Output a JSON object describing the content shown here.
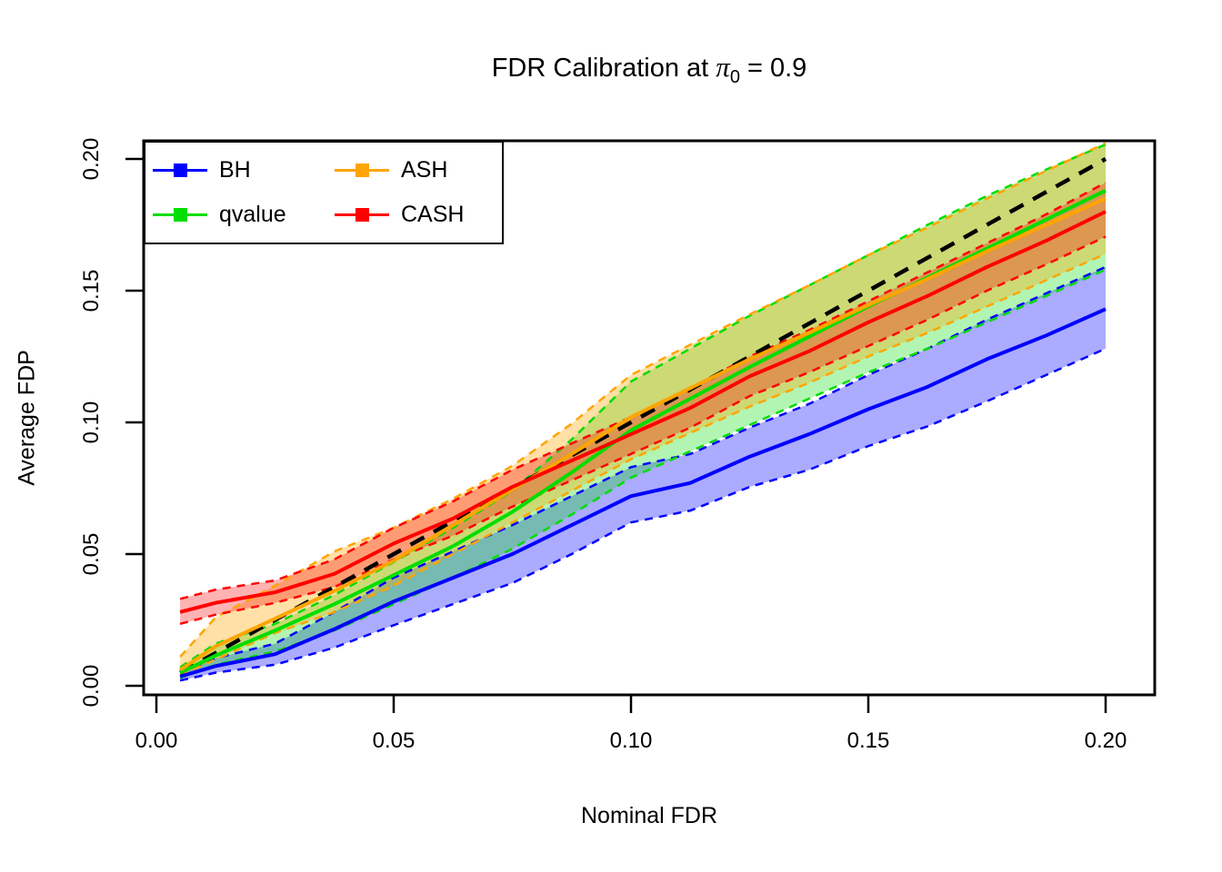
{
  "title": {
    "prefix": "FDR Calibration at ",
    "pi": "π",
    "sub": "0",
    "suffix": " = 0.9"
  },
  "chart_data": {
    "type": "line",
    "title": "FDR Calibration at pi0 = 0.9",
    "xlabel": "Nominal FDR",
    "ylabel": "Average FDP",
    "xlim": [
      0,
      0.21
    ],
    "ylim": [
      0,
      0.207
    ],
    "grid": "off",
    "x_ticks": {
      "values": [
        0,
        0.05,
        0.1,
        0.15,
        0.2
      ],
      "labels": [
        "0.00",
        "0.05",
        "0.10",
        "0.15",
        "0.20"
      ]
    },
    "y_ticks": {
      "values": [
        0,
        0.05,
        0.1,
        0.15,
        0.2
      ],
      "labels": [
        "0.00",
        "0.05",
        "0.10",
        "0.15",
        "0.20"
      ]
    },
    "legend": {
      "position": "top-left",
      "entries": [
        "BH",
        "qvalue",
        "ASH",
        "CASH"
      ]
    },
    "reference_line": {
      "meaning": "y = x (perfect calibration)",
      "color": "#000000",
      "style": "dashed",
      "x": [
        0.005,
        0.2
      ],
      "y": [
        0.005,
        0.2
      ]
    },
    "x": [
      0.005,
      0.0125,
      0.025,
      0.0375,
      0.05,
      0.0625,
      0.075,
      0.0875,
      0.1,
      0.1125,
      0.125,
      0.1375,
      0.15,
      0.1625,
      0.175,
      0.1875,
      0.2
    ],
    "series": [
      {
        "name": "BH",
        "color": "#0000FF",
        "band_alpha": 0.33,
        "mean": [
          0.0035,
          0.0075,
          0.012,
          0.0215,
          0.032,
          0.041,
          0.05,
          0.061,
          0.072,
          0.077,
          0.087,
          0.0955,
          0.105,
          0.1135,
          0.124,
          0.133,
          0.143
        ],
        "lo": [
          0.002,
          0.005,
          0.008,
          0.0145,
          0.023,
          0.031,
          0.039,
          0.05,
          0.062,
          0.0665,
          0.0755,
          0.082,
          0.091,
          0.0985,
          0.108,
          0.118,
          0.128
        ],
        "hi": [
          0.005,
          0.0105,
          0.016,
          0.028,
          0.041,
          0.051,
          0.061,
          0.072,
          0.083,
          0.088,
          0.098,
          0.107,
          0.118,
          0.128,
          0.139,
          0.149,
          0.159
        ]
      },
      {
        "name": "qvalue",
        "color": "#00DD00",
        "band_alpha": 0.3,
        "mean": [
          0.005,
          0.0115,
          0.021,
          0.031,
          0.042,
          0.053,
          0.066,
          0.081,
          0.097,
          0.109,
          0.121,
          0.1325,
          0.144,
          0.155,
          0.166,
          0.177,
          0.188
        ],
        "lo": [
          0.003,
          0.008,
          0.013,
          0.021,
          0.031,
          0.041,
          0.052,
          0.065,
          0.079,
          0.089,
          0.099,
          0.109,
          0.119,
          0.128,
          0.138,
          0.148,
          0.158
        ],
        "hi": [
          0.007,
          0.016,
          0.0235,
          0.0345,
          0.047,
          0.06,
          0.074,
          0.0935,
          0.1155,
          0.128,
          0.1405,
          0.152,
          0.1635,
          0.175,
          0.186,
          0.196,
          0.2055
        ]
      },
      {
        "name": "ASH",
        "color": "#FFA500",
        "band_alpha": 0.35,
        "mean": [
          0.006,
          0.015,
          0.0255,
          0.036,
          0.0475,
          0.061,
          0.0745,
          0.088,
          0.102,
          0.113,
          0.124,
          0.134,
          0.1445,
          0.1545,
          0.165,
          0.175,
          0.185
        ],
        "lo": [
          0.004,
          0.01,
          0.02,
          0.028,
          0.038,
          0.05,
          0.062,
          0.074,
          0.086,
          0.096,
          0.106,
          0.115,
          0.125,
          0.134,
          0.144,
          0.154,
          0.164
        ],
        "hi": [
          0.011,
          0.026,
          0.038,
          0.051,
          0.06,
          0.071,
          0.0835,
          0.0995,
          0.118,
          0.1295,
          0.141,
          0.152,
          0.1635,
          0.174,
          0.185,
          0.1955,
          0.206
        ]
      },
      {
        "name": "CASH",
        "color": "#FF0000",
        "band_alpha": 0.3,
        "mean": [
          0.028,
          0.0315,
          0.0355,
          0.0425,
          0.054,
          0.0635,
          0.0755,
          0.0855,
          0.0955,
          0.1055,
          0.1175,
          0.127,
          0.138,
          0.148,
          0.159,
          0.169,
          0.18
        ],
        "lo": [
          0.0235,
          0.027,
          0.0315,
          0.0375,
          0.048,
          0.057,
          0.068,
          0.078,
          0.088,
          0.098,
          0.11,
          0.119,
          0.129,
          0.139,
          0.15,
          0.16,
          0.1705
        ],
        "hi": [
          0.033,
          0.0365,
          0.04,
          0.048,
          0.06,
          0.07,
          0.082,
          0.092,
          0.102,
          0.113,
          0.125,
          0.135,
          0.146,
          0.157,
          0.168,
          0.179,
          0.191
        ]
      }
    ]
  }
}
